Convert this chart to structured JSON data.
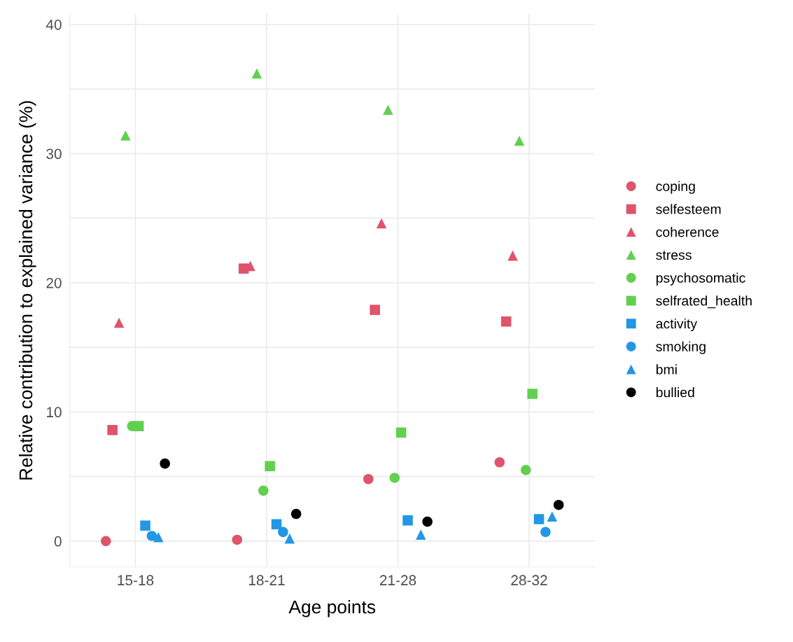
{
  "chart_data": {
    "type": "scatter",
    "xlabel": "Age points",
    "ylabel": "Relative contribution to explained variance (%)",
    "categories": [
      "15-18",
      "18-21",
      "21-28",
      "28-32"
    ],
    "ylim": [
      -2,
      40.8
    ],
    "yticks": [
      0,
      {
        "value": 5,
        "label": null
      },
      10,
      {
        "value": 15,
        "label": null
      },
      20,
      {
        "value": 25,
        "label": null
      },
      30,
      {
        "value": 35,
        "label": null
      },
      40
    ],
    "grid": true,
    "legend": "right",
    "series": [
      {
        "name": "coping",
        "color": "#df536b",
        "marker": "circle",
        "values": [
          0.0,
          0.1,
          4.8,
          6.1
        ]
      },
      {
        "name": "selfesteem",
        "color": "#df536b",
        "marker": "square",
        "values": [
          8.6,
          21.1,
          17.9,
          17.0
        ]
      },
      {
        "name": "coherence",
        "color": "#df536b",
        "marker": "triangle",
        "values": [
          16.9,
          21.3,
          24.6,
          22.1
        ]
      },
      {
        "name": "stress",
        "color": "#61d04f",
        "marker": "triangle",
        "values": [
          31.4,
          36.2,
          33.4,
          31.0
        ]
      },
      {
        "name": "psychosomatic",
        "color": "#61d04f",
        "marker": "circle",
        "values": [
          8.9,
          3.9,
          4.9,
          5.5
        ]
      },
      {
        "name": "selfrated_health",
        "color": "#61d04f",
        "marker": "square",
        "values": [
          8.9,
          5.8,
          8.4,
          11.4
        ]
      },
      {
        "name": "activity",
        "color": "#2297e6",
        "marker": "square",
        "values": [
          1.2,
          1.3,
          1.6,
          1.7
        ]
      },
      {
        "name": "smoking",
        "color": "#2297e6",
        "marker": "circle",
        "values": [
          0.4,
          0.7,
          null,
          0.7
        ]
      },
      {
        "name": "bmi",
        "color": "#2297e6",
        "marker": "triangle",
        "values": [
          0.3,
          0.2,
          0.5,
          1.9
        ]
      },
      {
        "name": "bullied",
        "color": "#000000",
        "marker": "circle",
        "values": [
          6.0,
          2.1,
          1.5,
          2.8
        ]
      }
    ]
  }
}
